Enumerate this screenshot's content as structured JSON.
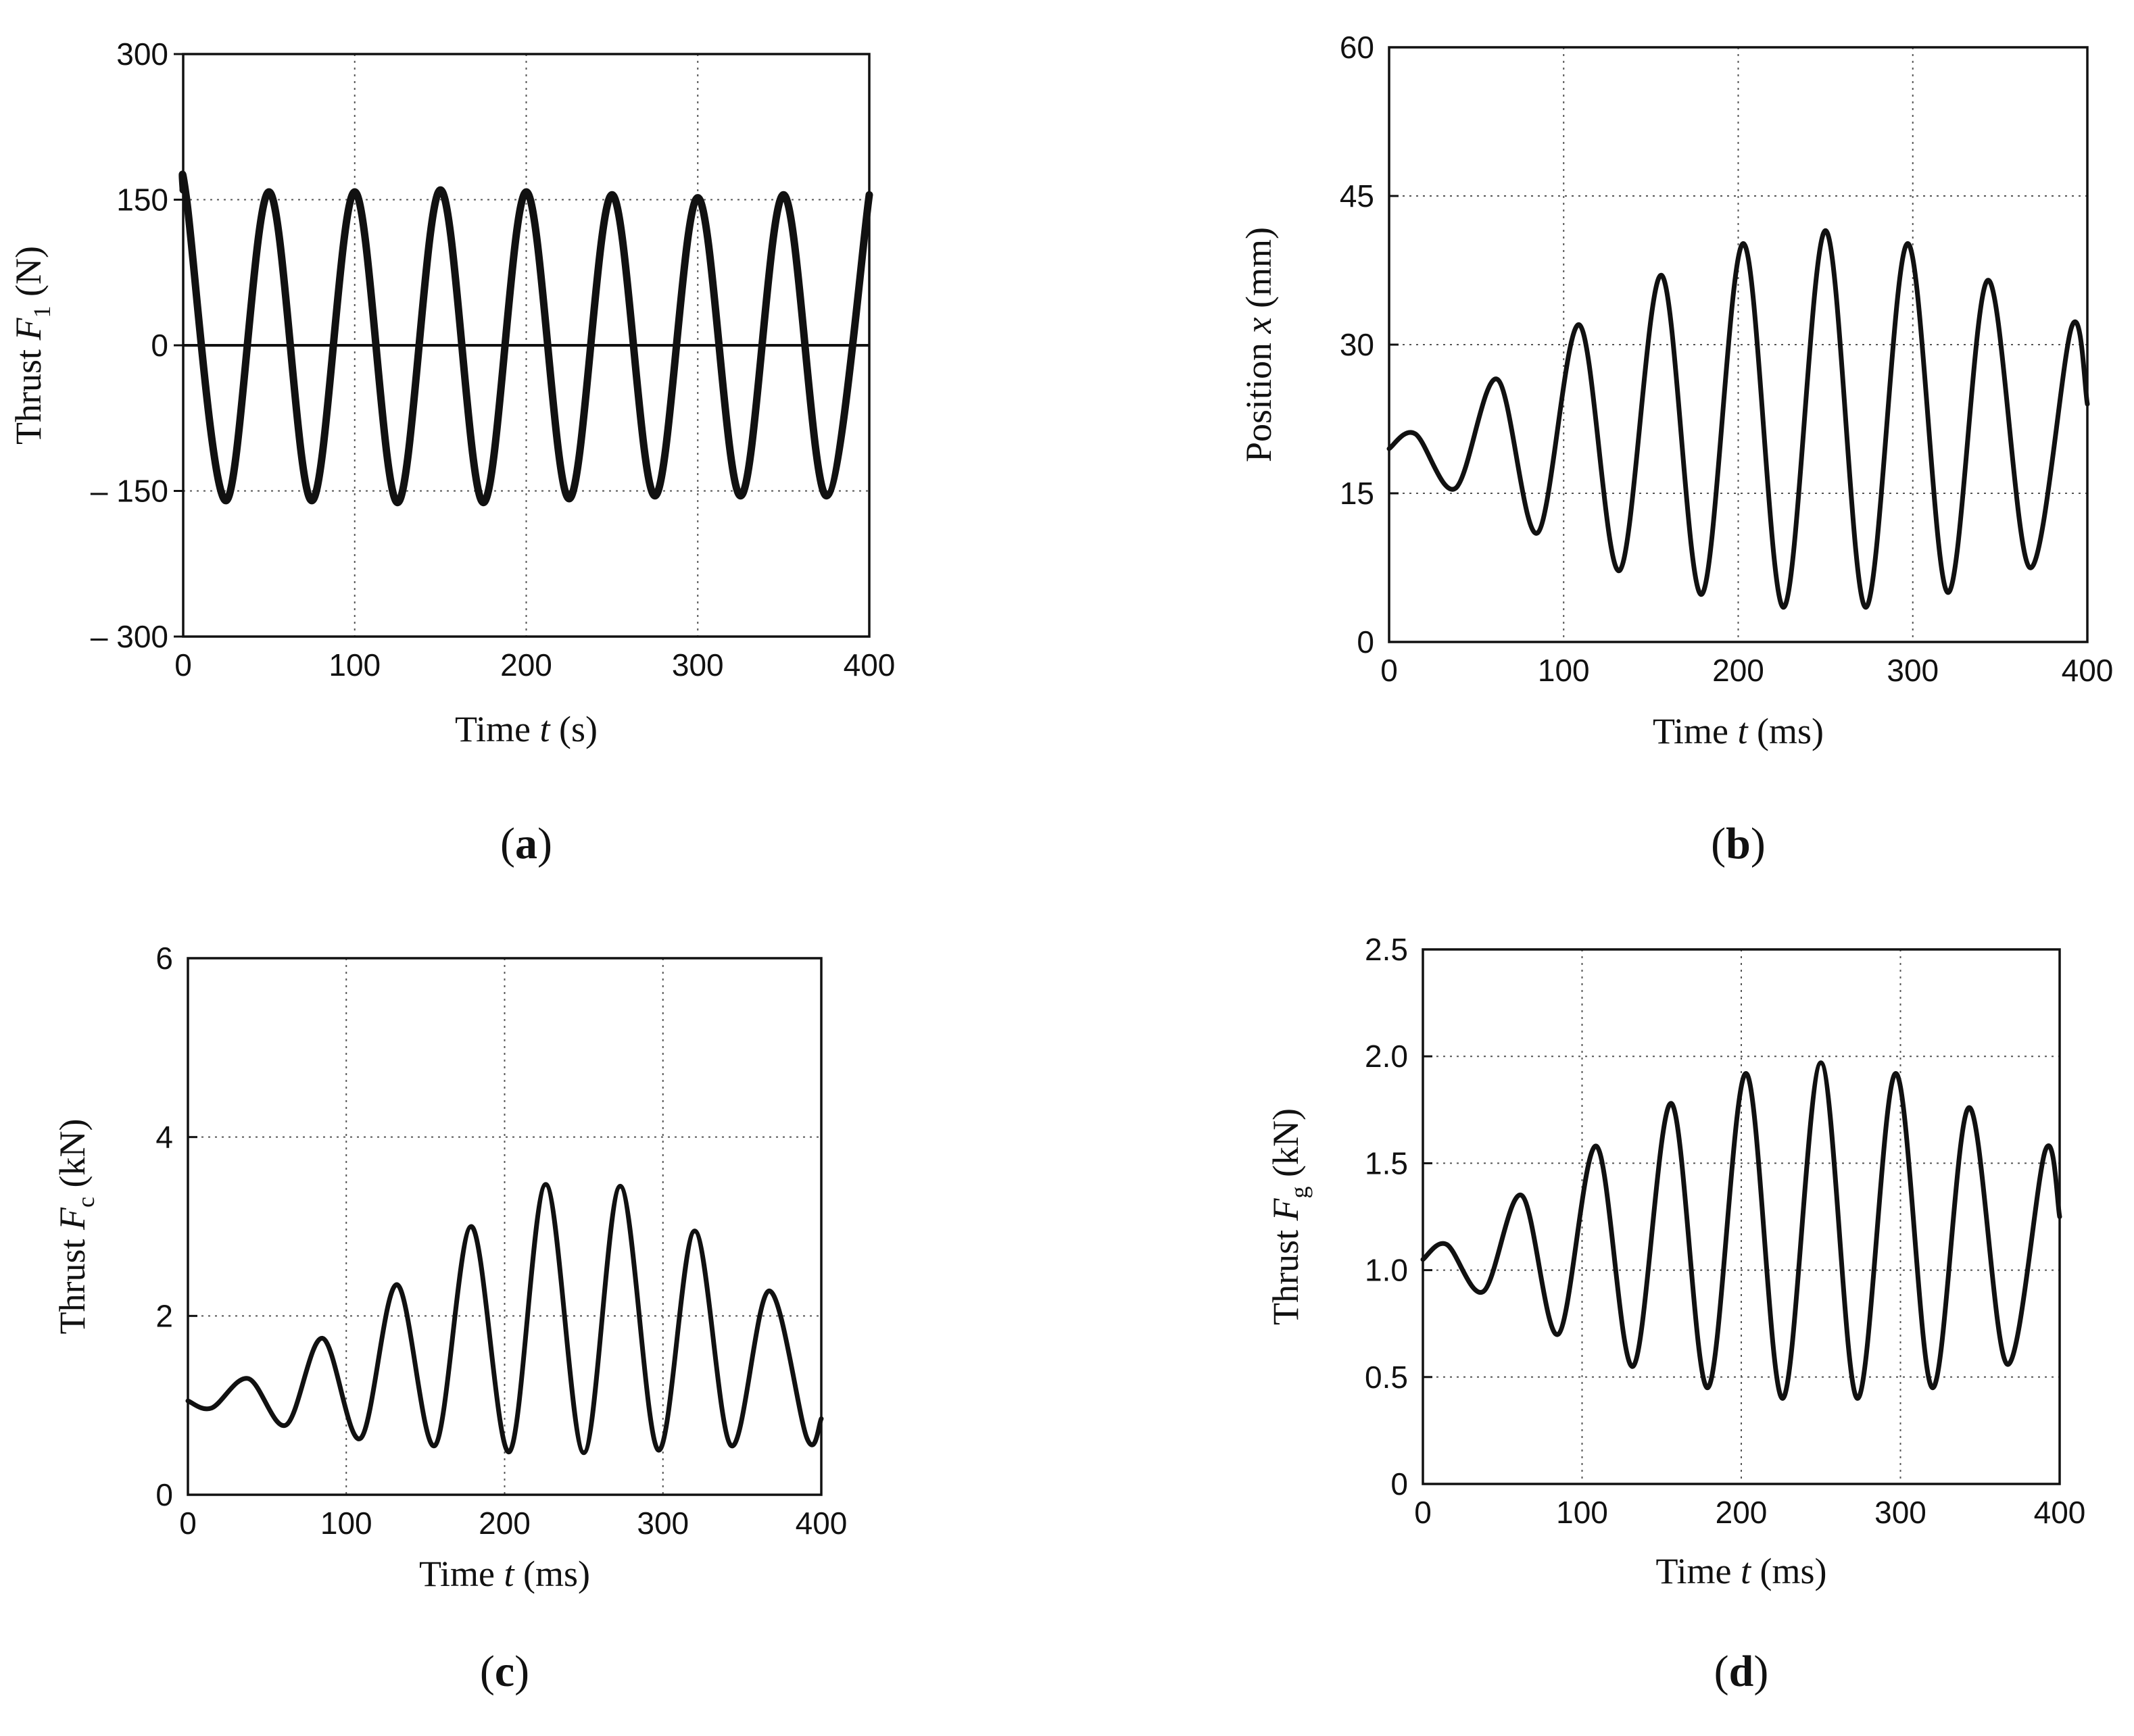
{
  "chart_data": [
    {
      "id": "a",
      "type": "line",
      "panel_label": "a",
      "xlabel": {
        "pre": "Time ",
        "var": "t",
        "sub": "",
        "post": "  (s)"
      },
      "ylabel": {
        "pre": "Thrust ",
        "var": "F",
        "sub": "1",
        "post": "  (N)"
      },
      "xlim": [
        0,
        400
      ],
      "ylim": [
        -300,
        300
      ],
      "x_ticks": [
        0,
        100,
        200,
        300,
        400
      ],
      "x_tick_labels": [
        "0",
        "100",
        "200",
        "300",
        "400"
      ],
      "y_ticks": [
        -300,
        -150,
        0,
        150,
        300
      ],
      "y_tick_labels": [
        "– 300",
        "– 150",
        "0",
        "150",
        "300"
      ],
      "grid": true,
      "zero_line": true,
      "series": [
        {
          "name": "Thrust F1",
          "x": [
            0,
            2,
            25,
            50,
            75,
            100,
            125,
            150,
            175,
            200,
            225,
            250,
            275,
            300,
            325,
            350,
            375,
            400
          ],
          "y": [
            160,
            150,
            -160,
            158,
            -160,
            158,
            -162,
            160,
            -162,
            158,
            -158,
            155,
            -155,
            152,
            -155,
            155,
            -155,
            155
          ]
        }
      ]
    },
    {
      "id": "b",
      "type": "line",
      "panel_label": "b",
      "xlabel": {
        "pre": "Time ",
        "var": "t",
        "sub": "",
        "post": "  (ms)"
      },
      "ylabel": {
        "pre": "Position ",
        "var": "x",
        "sub": "",
        "post": "  (mm)"
      },
      "xlim": [
        0,
        400
      ],
      "ylim": [
        0,
        60
      ],
      "x_ticks": [
        0,
        100,
        200,
        300,
        400
      ],
      "x_tick_labels": [
        "0",
        "100",
        "200",
        "300",
        "400"
      ],
      "y_ticks": [
        0,
        15,
        30,
        45,
        60
      ],
      "y_tick_labels": [
        "0",
        "15",
        "30",
        "45",
        "60"
      ],
      "grid": true,
      "zero_line": false,
      "series": [
        {
          "name": "Position x",
          "x": [
            0,
            15,
            38,
            62,
            85,
            109,
            132,
            156,
            179,
            203,
            226,
            250,
            273,
            297,
            320,
            343,
            367,
            391,
            400
          ],
          "y": [
            19.5,
            21,
            15.5,
            26.5,
            11,
            32,
            7.2,
            37,
            4.8,
            40.2,
            3.5,
            41.5,
            3.5,
            40.2,
            5,
            36.5,
            7.5,
            31.8,
            24
          ]
        }
      ]
    },
    {
      "id": "c",
      "type": "line",
      "panel_label": "c",
      "xlabel": {
        "pre": "Time ",
        "var": "t",
        "sub": "",
        "post": "  (ms)"
      },
      "ylabel": {
        "pre": "Thrust ",
        "var": "F",
        "sub": "c",
        "post": "  (kN)"
      },
      "xlim": [
        0,
        400
      ],
      "ylim": [
        0,
        6
      ],
      "x_ticks": [
        0,
        100,
        200,
        300,
        400
      ],
      "x_tick_labels": [
        "0",
        "100",
        "200",
        "300",
        "400"
      ],
      "y_ticks": [
        0,
        2,
        4,
        6
      ],
      "y_tick_labels": [
        "0",
        "2",
        "4",
        "6"
      ],
      "grid": true,
      "zero_line": false,
      "series": [
        {
          "name": "Thrust Fc",
          "x": [
            0,
            15,
            38,
            62,
            85,
            109,
            132,
            156,
            179,
            203,
            226,
            250,
            273,
            297,
            320,
            343,
            367,
            391,
            400
          ],
          "y": [
            1.05,
            0.97,
            1.3,
            0.78,
            1.75,
            0.63,
            2.35,
            0.55,
            3.0,
            0.48,
            3.47,
            0.47,
            3.45,
            0.5,
            2.95,
            0.55,
            2.28,
            0.63,
            0.85
          ]
        }
      ]
    },
    {
      "id": "d",
      "type": "line",
      "panel_label": "d",
      "xlabel": {
        "pre": "Time ",
        "var": "t",
        "sub": "",
        "post": "  (ms)"
      },
      "ylabel": {
        "pre": "Thrust ",
        "var": "F",
        "sub": "g",
        "post": "  (kN)"
      },
      "xlim": [
        0,
        400
      ],
      "ylim": [
        0,
        2.5
      ],
      "x_ticks": [
        0,
        100,
        200,
        300,
        400
      ],
      "x_tick_labels": [
        "0",
        "100",
        "200",
        "300",
        "400"
      ],
      "y_ticks": [
        0,
        0.5,
        1.0,
        1.5,
        2.0,
        2.5
      ],
      "y_tick_labels": [
        "0",
        "0.5",
        "1.0",
        "1.5",
        "2.0",
        "2.5"
      ],
      "grid": true,
      "zero_line": false,
      "series": [
        {
          "name": "Thrust Fg",
          "x": [
            0,
            15,
            38,
            62,
            85,
            109,
            132,
            156,
            179,
            203,
            226,
            250,
            273,
            297,
            320,
            343,
            367,
            391,
            400
          ],
          "y": [
            1.05,
            1.12,
            0.9,
            1.35,
            0.7,
            1.58,
            0.55,
            1.78,
            0.45,
            1.92,
            0.4,
            1.97,
            0.4,
            1.92,
            0.45,
            1.76,
            0.56,
            1.56,
            1.25
          ]
        }
      ]
    }
  ]
}
